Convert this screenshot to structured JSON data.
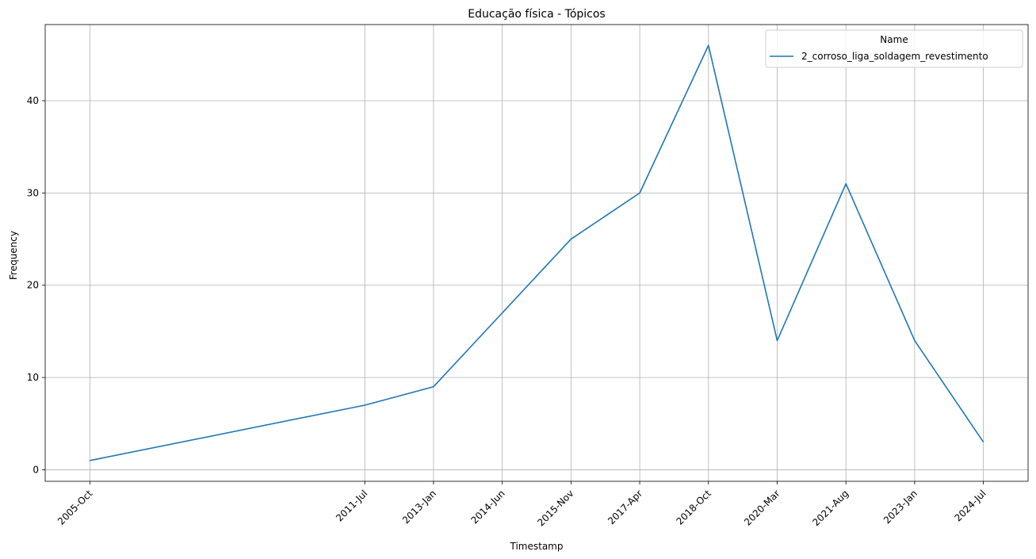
{
  "chart_data": {
    "type": "line",
    "title": "Educação física - Tópicos",
    "xlabel": "Timestamp",
    "ylabel": "Frequency",
    "x": [
      "2005-Oct",
      "2011-Jul",
      "2013-Jan",
      "2014-Jun",
      "2015-Nov",
      "2017-Apr",
      "2018-Oct",
      "2020-Mar",
      "2021-Aug",
      "2023-Jan",
      "2024-Jul"
    ],
    "x_positions": [
      0,
      4,
      5,
      6,
      7,
      8,
      9,
      10,
      11,
      12,
      13
    ],
    "series": [
      {
        "name": "2_corroso_liga_soldagem_revestimento",
        "values": [
          1,
          7,
          9,
          17,
          25,
          30,
          46,
          14,
          31,
          14,
          3
        ],
        "color": "#1f77b4"
      }
    ],
    "yticks": [
      0,
      10,
      20,
      30,
      40
    ],
    "ylim": [
      -1.25,
      48.25
    ],
    "grid": true,
    "legend": {
      "title": "Name",
      "placement": "upper right"
    }
  }
}
